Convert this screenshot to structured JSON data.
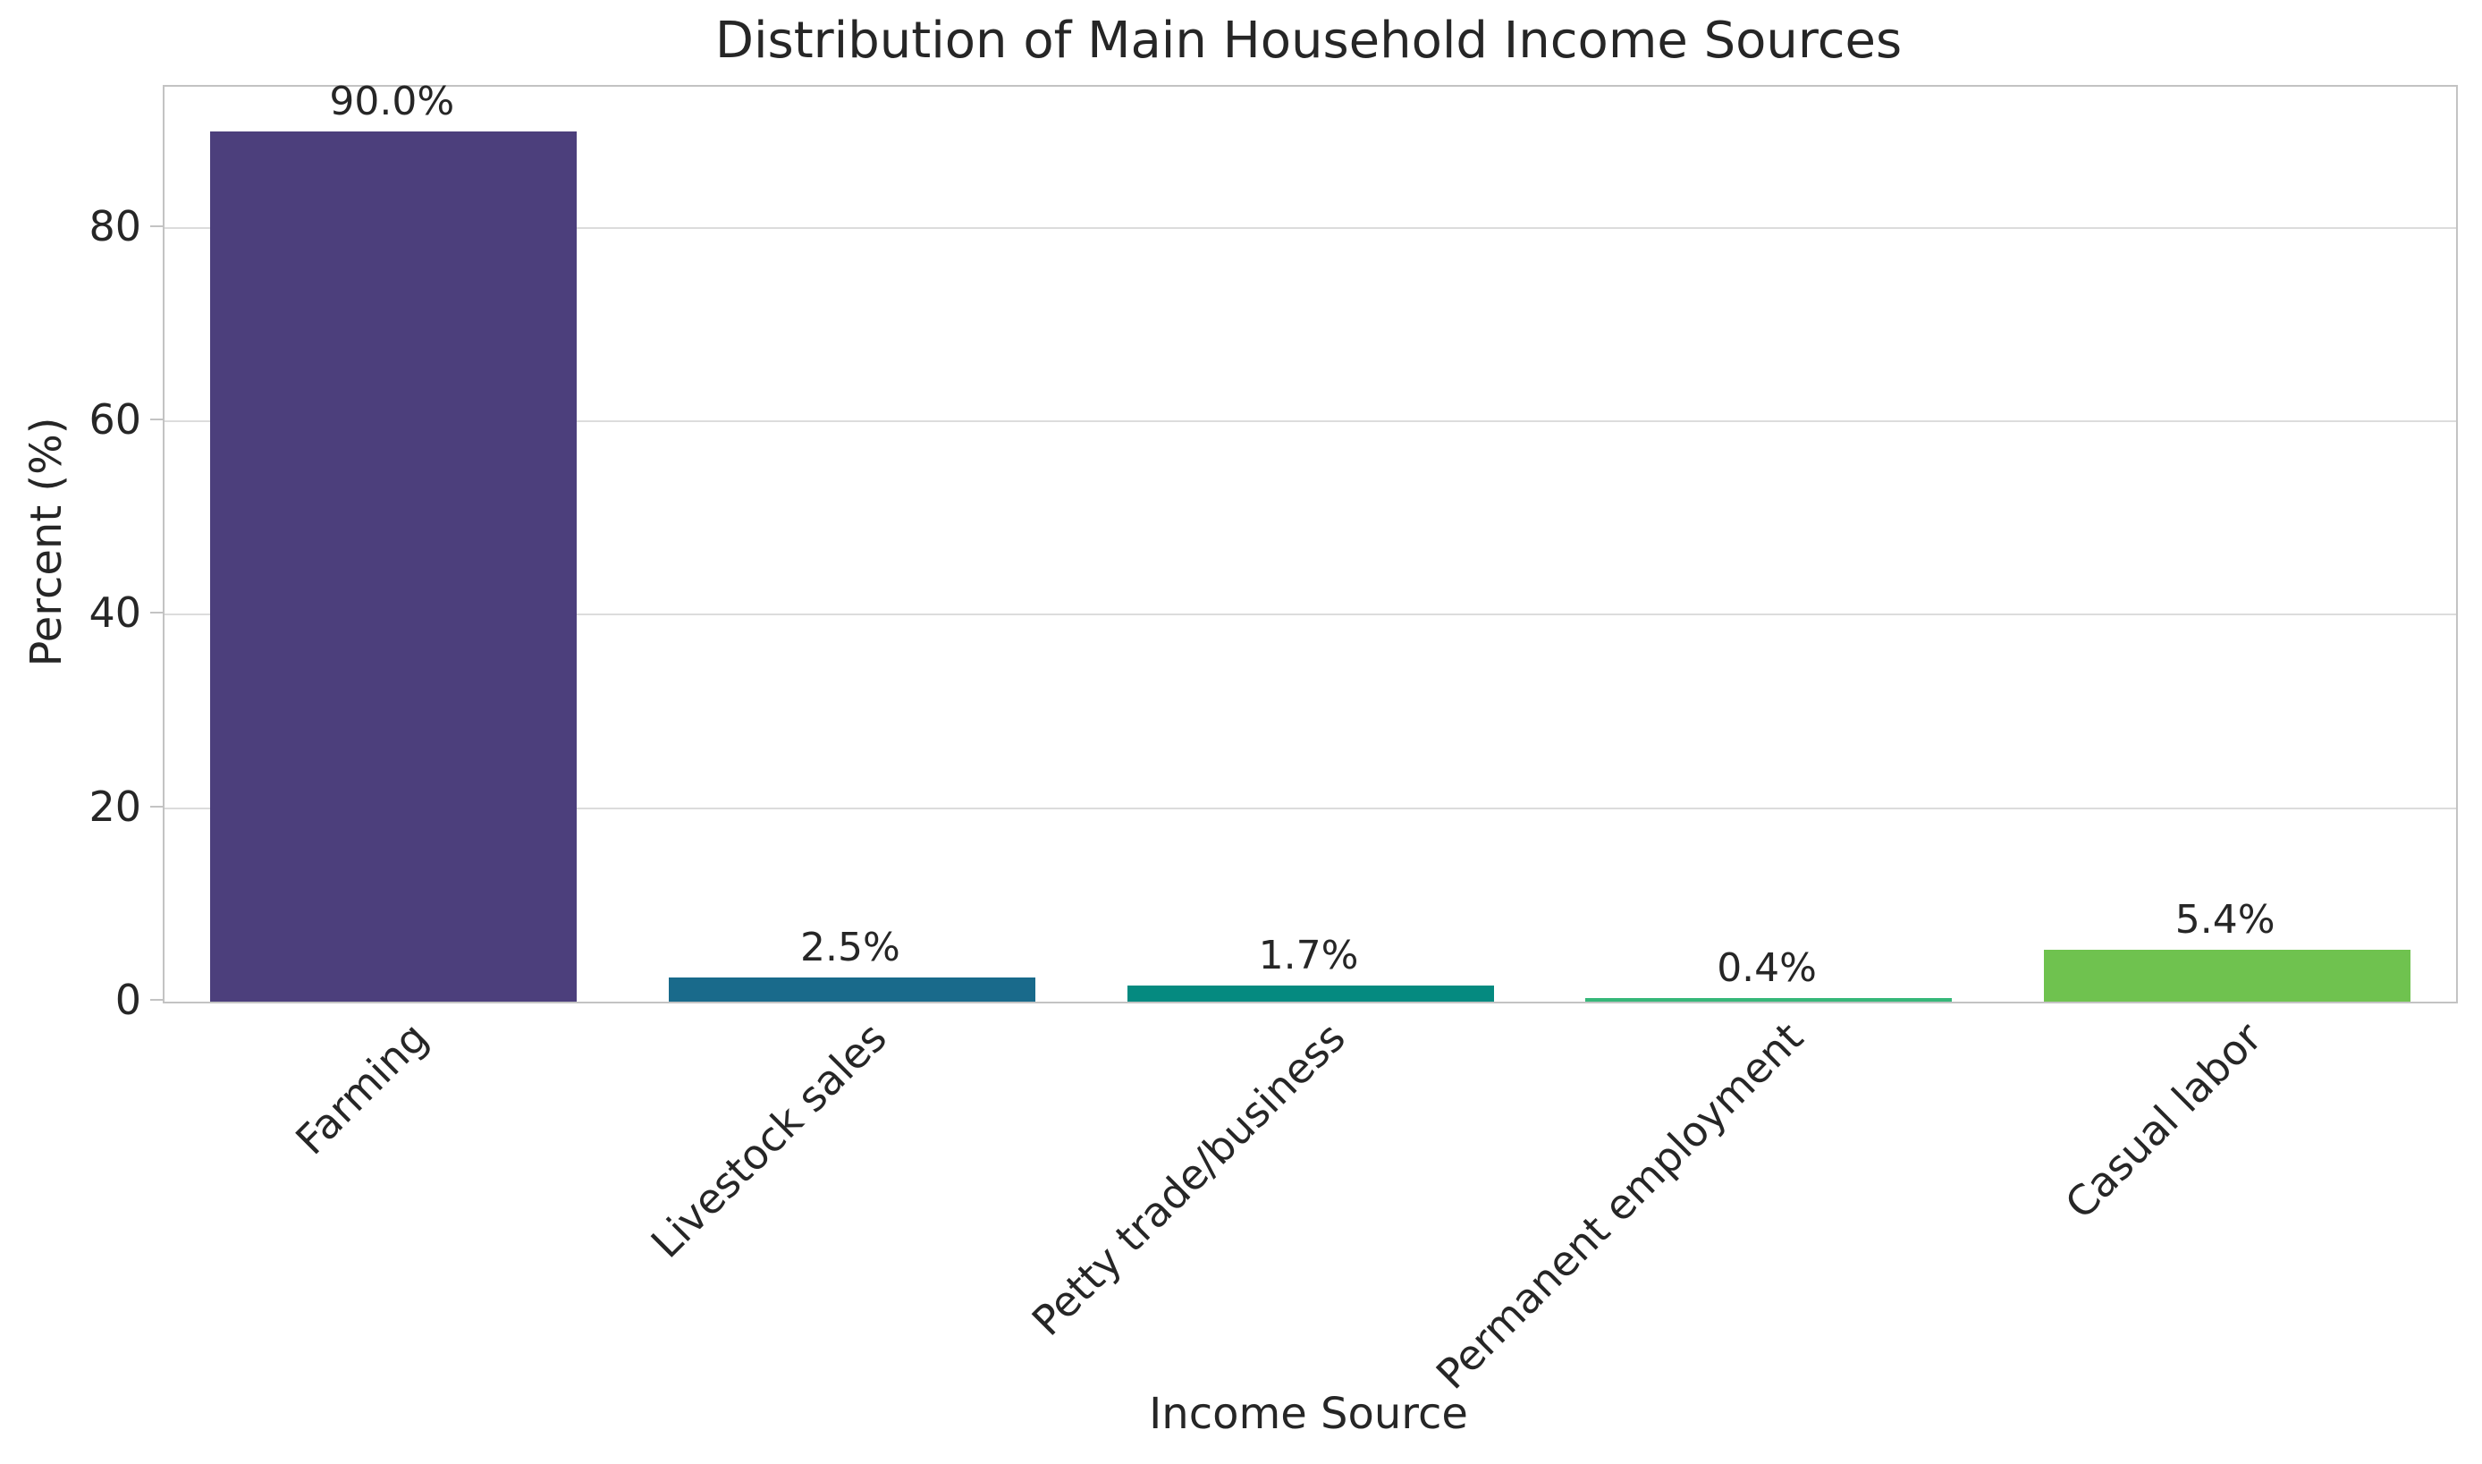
{
  "chart_data": {
    "type": "bar",
    "title": "Distribution of Main Household Income Sources",
    "xlabel": "Income Source",
    "ylabel": "Percent (%)",
    "categories": [
      "Farming",
      "Livestock sales",
      "Petty trade/business",
      "Permanent employment",
      "Casual labor"
    ],
    "values": [
      90.0,
      2.5,
      1.7,
      0.4,
      5.4
    ],
    "value_labels": [
      "90.0%",
      "2.5%",
      "1.7%",
      "0.4%",
      "5.4%"
    ],
    "bar_colors": [
      "#4C3F7C",
      "#196A8B",
      "#058A80",
      "#35B779",
      "#6FC24F"
    ],
    "yticks": [
      0,
      20,
      40,
      60,
      80
    ],
    "ylim": [
      0,
      94.6
    ],
    "x_tick_rotation_deg": 45,
    "grid": "horizontal",
    "legend": "none",
    "background_color": "#ffffff",
    "axis_color": "#c3c3c3",
    "grid_color": "#dcdcdc",
    "text_color": "#262626"
  }
}
